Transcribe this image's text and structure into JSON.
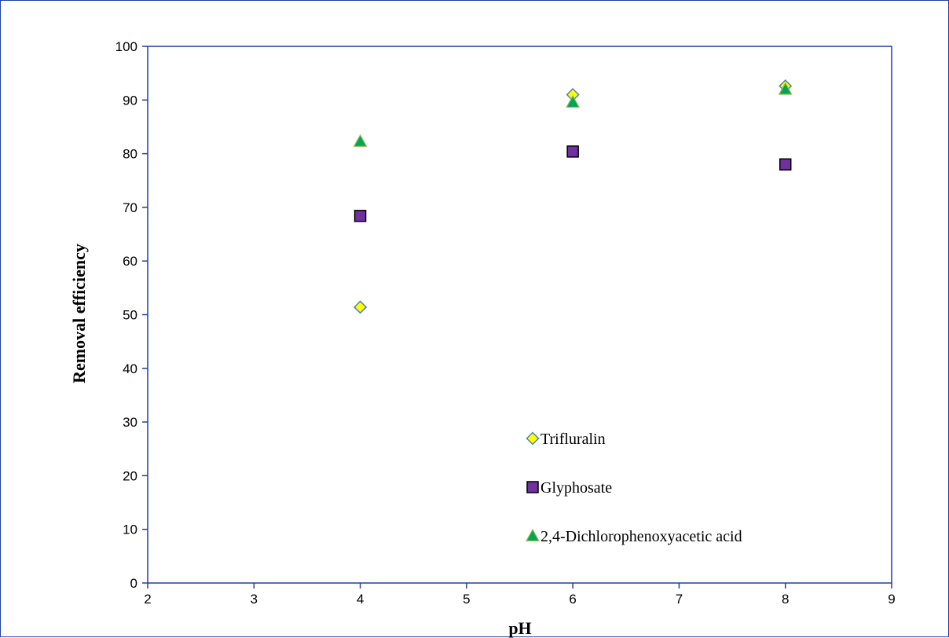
{
  "chart_data": {
    "type": "scatter",
    "title": "",
    "xlabel": "pH",
    "ylabel": "Removal efficiency",
    "xlim": [
      2,
      9
    ],
    "ylim": [
      0,
      100
    ],
    "x_ticks": [
      "2",
      "3",
      "4",
      "5",
      "6",
      "7",
      "8",
      "9"
    ],
    "y_ticks": [
      "0",
      "10",
      "20",
      "30",
      "40",
      "50",
      "60",
      "70",
      "80",
      "90",
      "100"
    ],
    "grid": false,
    "legend_position": "inside-bottom-right",
    "series": [
      {
        "name": "Trifluralin",
        "marker": "diamond",
        "fill": "#ffff00",
        "stroke": "#4f81bd",
        "points": [
          {
            "x": 4,
            "y": 51.4
          },
          {
            "x": 6,
            "y": 91
          },
          {
            "x": 8,
            "y": 92.6
          }
        ]
      },
      {
        "name": "Glyphosate",
        "marker": "square",
        "fill": "#7030a0",
        "stroke": "#000000",
        "points": [
          {
            "x": 4,
            "y": 68.4
          },
          {
            "x": 6,
            "y": 80.4
          },
          {
            "x": 8,
            "y": 78
          }
        ]
      },
      {
        "name": "2,4-Dichlorophenoxyacetic acid",
        "marker": "triangle",
        "fill": "#00a651",
        "stroke": "#9bbb59",
        "points": [
          {
            "x": 4,
            "y": 82.3
          },
          {
            "x": 6,
            "y": 89.6
          },
          {
            "x": 8,
            "y": 92
          }
        ]
      }
    ],
    "colors": {
      "axis": "#1f3fa3",
      "frame": "#1f3fa3"
    }
  }
}
